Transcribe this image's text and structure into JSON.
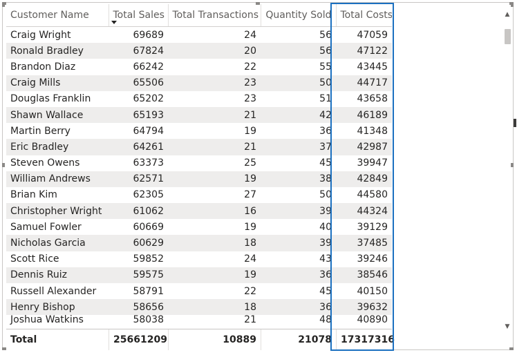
{
  "table": {
    "columns": [
      "Customer Name",
      "Total Sales",
      "Total Transactions",
      "Quantity Sold",
      "Total Costs"
    ],
    "sorted_column": "Total Sales",
    "rows": [
      [
        "Craig Wright",
        "69689",
        "24",
        "56",
        "47059"
      ],
      [
        "Ronald Bradley",
        "67824",
        "20",
        "56",
        "47122"
      ],
      [
        "Brandon Diaz",
        "66242",
        "22",
        "55",
        "43445"
      ],
      [
        "Craig Mills",
        "65506",
        "23",
        "50",
        "44717"
      ],
      [
        "Douglas Franklin",
        "65202",
        "23",
        "51",
        "43658"
      ],
      [
        "Shawn Wallace",
        "65193",
        "21",
        "42",
        "46189"
      ],
      [
        "Martin Berry",
        "64794",
        "19",
        "36",
        "41348"
      ],
      [
        "Eric Bradley",
        "64261",
        "21",
        "37",
        "42987"
      ],
      [
        "Steven Owens",
        "63373",
        "25",
        "45",
        "39947"
      ],
      [
        "William Andrews",
        "62571",
        "19",
        "38",
        "42849"
      ],
      [
        "Brian Kim",
        "62305",
        "27",
        "50",
        "44580"
      ],
      [
        "Christopher Wright",
        "61062",
        "16",
        "39",
        "44324"
      ],
      [
        "Samuel Fowler",
        "60669",
        "19",
        "40",
        "39129"
      ],
      [
        "Nicholas Garcia",
        "60629",
        "18",
        "39",
        "37485"
      ],
      [
        "Scott Rice",
        "59852",
        "24",
        "43",
        "39246"
      ],
      [
        "Dennis Ruiz",
        "59575",
        "19",
        "36",
        "38546"
      ],
      [
        "Russell Alexander",
        "58791",
        "22",
        "45",
        "40150"
      ],
      [
        "Henry Bishop",
        "58656",
        "18",
        "36",
        "39632"
      ],
      [
        "Joshua Watkins",
        "58038",
        "21",
        "48",
        "40890"
      ]
    ],
    "totals": [
      "Total",
      "25661209",
      "10889",
      "21078",
      "17317316"
    ]
  },
  "highlighted_column": "Total Costs",
  "colors": {
    "highlight": "#1b70c0",
    "stripe": "#eeedec"
  },
  "icons": {
    "sort": "sort-descending-icon",
    "scroll_up": "chevron-up-icon",
    "scroll_down": "chevron-down-icon"
  }
}
